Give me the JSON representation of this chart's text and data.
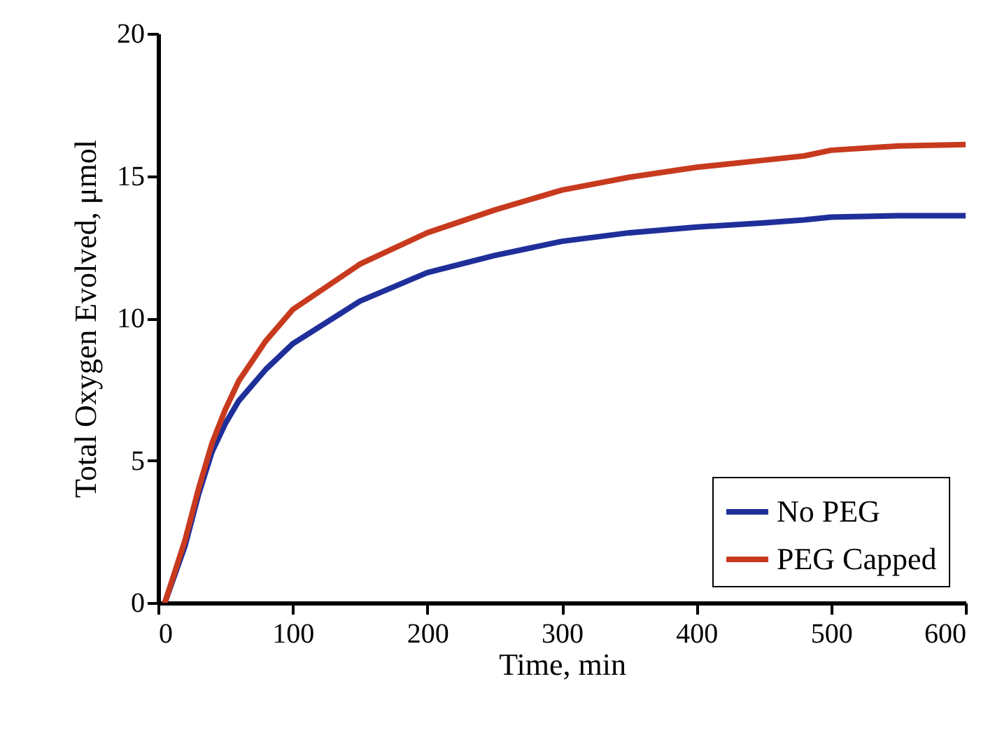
{
  "chart_data": {
    "type": "line",
    "xlabel": "Time, min",
    "ylabel": "Total Oxygen Evolved, μmol",
    "x": [
      5,
      20,
      30,
      40,
      50,
      60,
      80,
      100,
      150,
      200,
      250,
      300,
      350,
      400,
      450,
      480,
      500,
      550,
      600
    ],
    "series": [
      {
        "name": "No PEG",
        "color": "#1f2f9a",
        "values": [
          0,
          2,
          3.8,
          5.3,
          6.3,
          7.1,
          8.2,
          9.1,
          10.6,
          11.6,
          12.2,
          12.7,
          13.0,
          13.2,
          13.35,
          13.45,
          13.55,
          13.6,
          13.6
        ]
      },
      {
        "name": "PEG Capped",
        "color": "#c83a1e",
        "values": [
          0,
          2.2,
          4.0,
          5.6,
          6.8,
          7.8,
          9.2,
          10.3,
          11.9,
          13.0,
          13.8,
          14.5,
          14.95,
          15.3,
          15.55,
          15.7,
          15.9,
          16.05,
          16.1
        ]
      }
    ],
    "xlim": [
      0,
      600
    ],
    "xticks": [
      0,
      100,
      200,
      300,
      400,
      500,
      600
    ],
    "ylim": [
      0,
      20
    ],
    "yticks": [
      0,
      5,
      10,
      15,
      20
    ],
    "grid": false,
    "legend": "bottom right"
  }
}
